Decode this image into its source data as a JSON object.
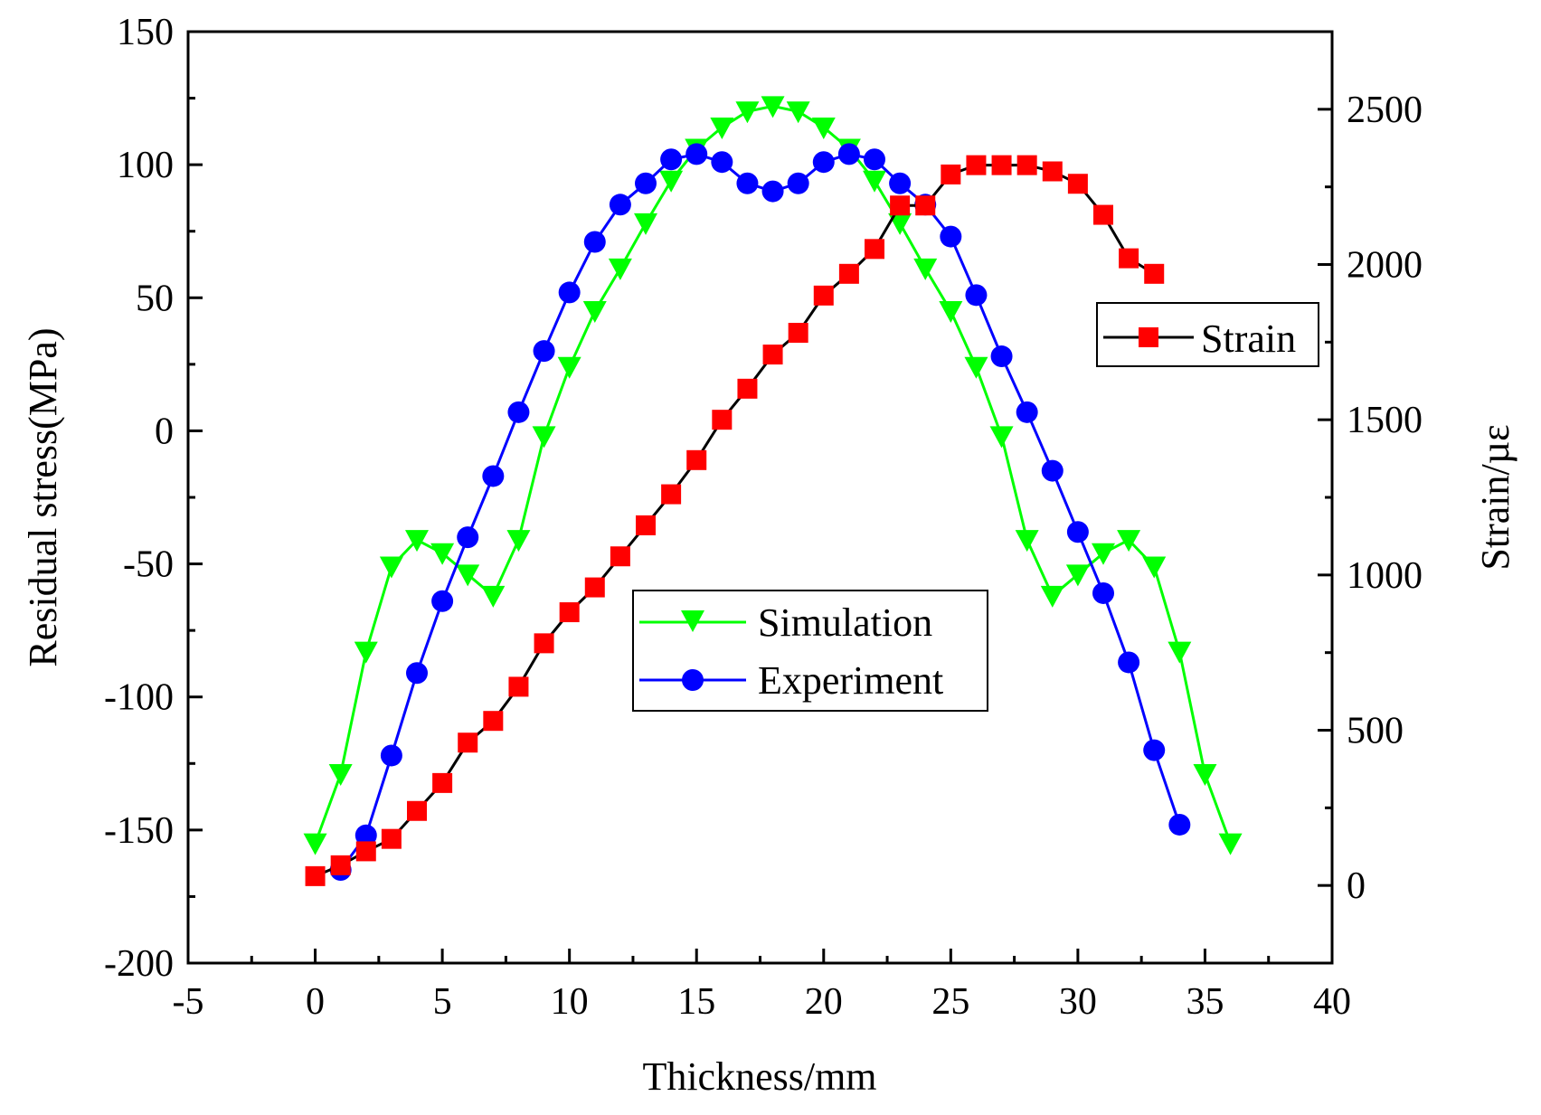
{
  "chart_data": {
    "type": "line",
    "title": "",
    "xlabel": "Thickness/mm",
    "ylabel": "Residual stress(MPa)",
    "y2label": "Strain/µε",
    "xlim": [
      -5,
      40
    ],
    "ylim": [
      -200,
      150
    ],
    "y2lim": [
      -250,
      2750
    ],
    "x_ticks": [
      -5,
      0,
      5,
      10,
      15,
      20,
      25,
      30,
      35,
      40
    ],
    "y_ticks": [
      -200,
      -150,
      -100,
      -50,
      0,
      50,
      100,
      150
    ],
    "y2_ticks": [
      0,
      500,
      1000,
      1500,
      2000,
      2500
    ],
    "series": [
      {
        "name": "Simulation",
        "axis": "left",
        "color": "#00ff00",
        "marker": "triangle-down",
        "marker_color": "#00ff00",
        "x": [
          0,
          1,
          2,
          3,
          4,
          5,
          6,
          7,
          8,
          9,
          10,
          11,
          12,
          13,
          14,
          15,
          16,
          17,
          18,
          19,
          20,
          21,
          22,
          23,
          24,
          25,
          26,
          27,
          28,
          29,
          30,
          31,
          32,
          33,
          34,
          35,
          36
        ],
        "values": [
          -155,
          -129,
          -83,
          -51,
          -41,
          -46,
          -54,
          -62,
          -41,
          -2,
          24,
          45,
          61,
          78,
          94,
          106,
          114,
          120,
          122,
          120,
          114,
          106,
          94,
          78,
          61,
          45,
          24,
          -2,
          -41,
          -62,
          -54,
          -46,
          -41,
          -51,
          -83,
          -129,
          -155
        ]
      },
      {
        "name": "Experiment",
        "axis": "left",
        "color": "#0000ff",
        "marker": "circle",
        "marker_color": "#0000ff",
        "x": [
          1,
          2,
          3,
          4,
          5,
          6,
          7,
          8,
          9,
          10,
          11,
          12,
          13,
          14,
          15,
          16,
          17,
          18,
          19,
          20,
          21,
          22,
          23,
          24,
          25,
          26,
          27,
          28,
          29,
          30,
          31,
          32,
          33,
          34
        ],
        "values": [
          -165,
          -152,
          -122,
          -91,
          -64,
          -40,
          -17,
          7,
          30,
          52,
          71,
          85,
          93,
          102,
          104,
          101,
          93,
          90,
          93,
          101,
          104,
          102,
          93,
          85,
          73,
          51,
          28,
          7,
          -15,
          -38,
          -61,
          -87,
          -120,
          -148
        ]
      },
      {
        "name": "Strain",
        "axis": "right",
        "color": "#000000",
        "marker": "square",
        "marker_color": "#ff0000",
        "x": [
          0,
          1,
          2,
          3,
          4,
          5,
          6,
          7,
          8,
          9,
          10,
          11,
          12,
          13,
          14,
          15,
          16,
          17,
          18,
          19,
          20,
          21,
          22,
          23,
          24,
          25,
          26,
          27,
          28,
          29,
          30,
          31,
          32,
          33
        ],
        "values": [
          30,
          65,
          110,
          150,
          240,
          330,
          460,
          530,
          640,
          780,
          880,
          960,
          1060,
          1160,
          1260,
          1370,
          1500,
          1600,
          1710,
          1780,
          1900,
          1970,
          2050,
          2190,
          2190,
          2290,
          2320,
          2320,
          2320,
          2300,
          2260,
          2160,
          2020,
          1970
        ]
      }
    ],
    "legends": [
      {
        "label": "Strain",
        "series": "Strain"
      },
      {
        "label": "Simulation",
        "series": "Simulation"
      },
      {
        "label": "Experiment",
        "series": "Experiment"
      }
    ]
  }
}
